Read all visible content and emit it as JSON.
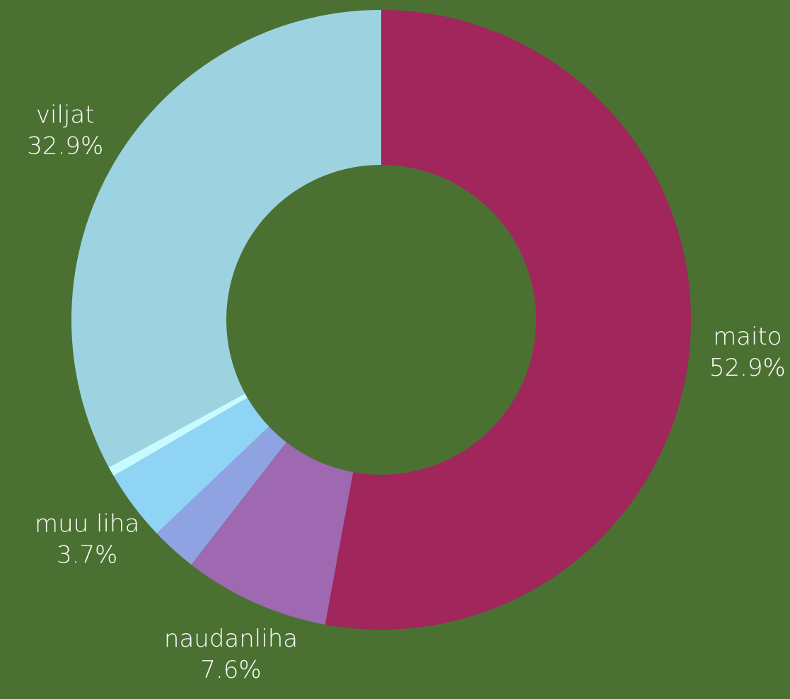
{
  "chart_data": {
    "type": "donut",
    "categories": [
      "maito",
      "naudanliha",
      null,
      "muu liha",
      null,
      "viljat"
    ],
    "values": [
      52.9,
      7.6,
      2.4,
      3.7,
      0.5,
      32.9
    ],
    "value_labels": [
      "52.9%",
      "7.6%",
      null,
      "3.7%",
      null,
      "32.9%"
    ],
    "colors": [
      "#a0265c",
      "#9e69b1",
      "#8fa3e3",
      "#8fd3f5",
      "#c8fbff",
      "#9dd3e0"
    ]
  }
}
